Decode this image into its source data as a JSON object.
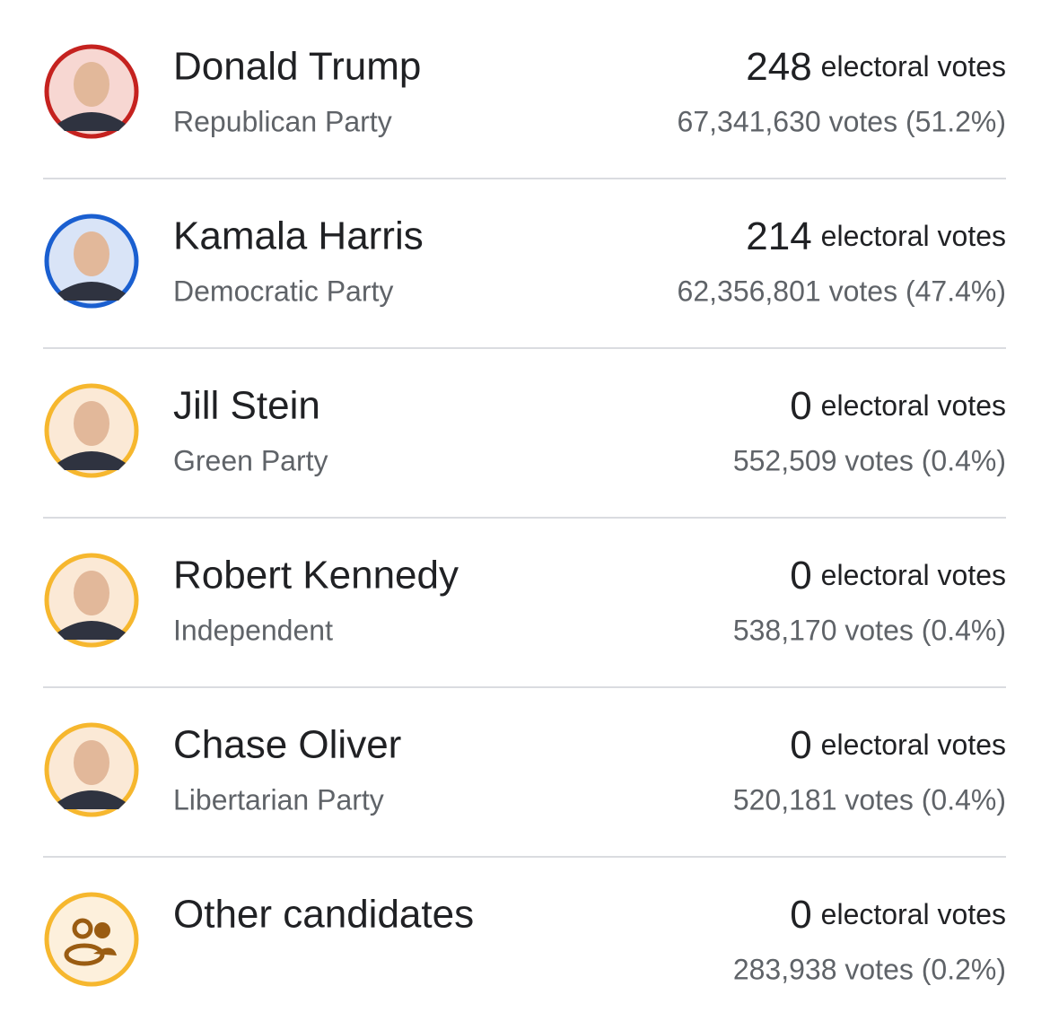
{
  "candidates": [
    {
      "name": "Donald Trump",
      "party": "Republican Party",
      "electoral": 248,
      "electoral_label": "electoral votes",
      "votes": "67,341,630 votes (51.2%)"
    },
    {
      "name": "Kamala Harris",
      "party": "Democratic Party",
      "electoral": 214,
      "electoral_label": "electoral votes",
      "votes": "62,356,801 votes (47.4%)"
    },
    {
      "name": "Jill Stein",
      "party": "Green Party",
      "electoral": 0,
      "electoral_label": "electoral votes",
      "votes": "552,509 votes (0.4%)"
    },
    {
      "name": "Robert Kennedy",
      "party": "Independent",
      "electoral": 0,
      "electoral_label": "electoral votes",
      "votes": "538,170 votes (0.4%)"
    },
    {
      "name": "Chase Oliver",
      "party": "Libertarian Party",
      "electoral": 0,
      "electoral_label": "electoral votes",
      "votes": "520,181 votes (0.4%)"
    },
    {
      "name": "Other candidates",
      "electoral": 0,
      "electoral_label": "electoral votes",
      "votes": "283,938 votes (0.2%)"
    }
  ]
}
